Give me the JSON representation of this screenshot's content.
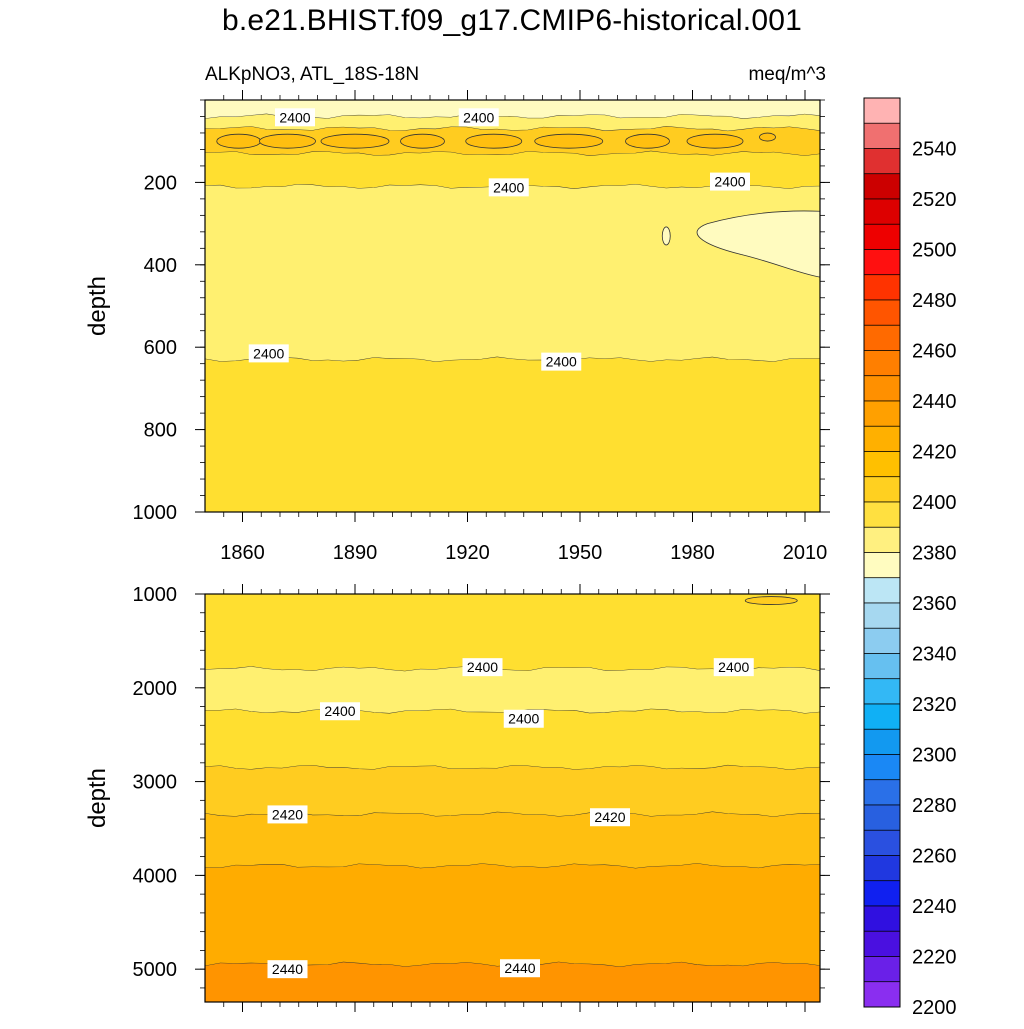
{
  "title": "b.e21.BHIST.f09_g17.CMIP6-historical.001",
  "subtitle_left": "ALKpNO3, ATL_18S-18N",
  "subtitle_right": "meq/m^3",
  "chart_data": [
    {
      "type": "heatmap",
      "panel": "upper",
      "ylabel": "depth",
      "ylim": [
        0,
        1000
      ],
      "y_reversed": true,
      "yticks": [
        "200",
        "400",
        "600",
        "800",
        "1000"
      ],
      "xlim": [
        1850,
        2014
      ],
      "xticks": [
        "1860",
        "1890",
        "1920",
        "1950",
        "1980",
        "2010"
      ],
      "contour_labels": [
        {
          "text": "2400",
          "x": 1874,
          "y": 42
        },
        {
          "text": "2400",
          "x": 1923,
          "y": 42
        },
        {
          "text": "2400",
          "x": 1931,
          "y": 212
        },
        {
          "text": "2400",
          "x": 1990,
          "y": 198
        },
        {
          "text": "2400",
          "x": 1867,
          "y": 615
        },
        {
          "text": "2400",
          "x": 1945,
          "y": 635
        }
      ],
      "bands": [
        {
          "from_depth": 0,
          "to_depth": 40,
          "value": 2385
        },
        {
          "from_depth": 40,
          "to_depth": 70,
          "value": 2395
        },
        {
          "from_depth": 70,
          "to_depth": 130,
          "value": 2410
        },
        {
          "from_depth": 130,
          "to_depth": 210,
          "value": 2400
        },
        {
          "from_depth": 210,
          "to_depth": 630,
          "value": 2390
        },
        {
          "from_depth": 630,
          "to_depth": 1000,
          "value": 2400
        }
      ]
    },
    {
      "type": "heatmap",
      "panel": "lower",
      "ylabel": "depth",
      "ylim": [
        1000,
        5350
      ],
      "y_reversed": true,
      "yticks": [
        "1000",
        "2000",
        "3000",
        "4000",
        "5000"
      ],
      "xlim": [
        1850,
        2014
      ],
      "contour_labels": [
        {
          "text": "2400",
          "x": 1924,
          "y": 1780
        },
        {
          "text": "2400",
          "x": 1991,
          "y": 1780
        },
        {
          "text": "2400",
          "x": 1886,
          "y": 2250
        },
        {
          "text": "2400",
          "x": 1935,
          "y": 2330
        },
        {
          "text": "2420",
          "x": 1872,
          "y": 3350
        },
        {
          "text": "2420",
          "x": 1958,
          "y": 3380
        },
        {
          "text": "2440",
          "x": 1872,
          "y": 5000
        },
        {
          "text": "2440",
          "x": 1934,
          "y": 4990
        }
      ],
      "bands": [
        {
          "from_depth": 1000,
          "to_depth": 1800,
          "value": 2400
        },
        {
          "from_depth": 1800,
          "to_depth": 2250,
          "value": 2390
        },
        {
          "from_depth": 2250,
          "to_depth": 2850,
          "value": 2400
        },
        {
          "from_depth": 2850,
          "to_depth": 3350,
          "value": 2415
        },
        {
          "from_depth": 3350,
          "to_depth": 3900,
          "value": 2420
        },
        {
          "from_depth": 3900,
          "to_depth": 4950,
          "value": 2430
        },
        {
          "from_depth": 4950,
          "to_depth": 5350,
          "value": 2440
        }
      ]
    }
  ],
  "colorbar": {
    "labels": [
      "2540",
      "2520",
      "2500",
      "2480",
      "2460",
      "2440",
      "2420",
      "2400",
      "2380",
      "2360",
      "2340",
      "2320",
      "2300",
      "2280",
      "2260",
      "2240",
      "2220",
      "2200"
    ],
    "colors": [
      "#ffb3b3",
      "#f07070",
      "#e03030",
      "#cc0000",
      "#dd0000",
      "#ee0000",
      "#ff1010",
      "#ff3300",
      "#ff5500",
      "#ff6a00",
      "#ff7f00",
      "#ff9000",
      "#ffa000",
      "#ffb000",
      "#ffc000",
      "#ffd020",
      "#ffe040",
      "#fff080",
      "#fffcc0",
      "#bce6f5",
      "#a6d8f0",
      "#8cccf0",
      "#66c0f0",
      "#33b8f5",
      "#10b0f5",
      "#1299f0",
      "#1a88f5",
      "#2a70e8",
      "#2860e0",
      "#2a50e0",
      "#2038e0",
      "#1020f0",
      "#3010e0",
      "#4a10e0",
      "#6a20e8",
      "#8a2ef0"
    ]
  }
}
